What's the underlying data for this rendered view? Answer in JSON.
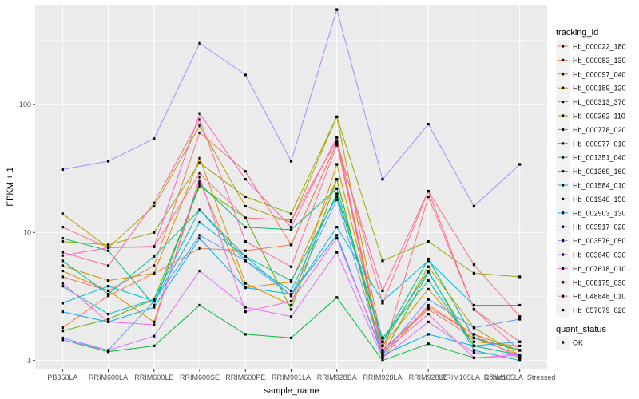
{
  "chart_data": {
    "type": "line",
    "xlabel": "sample_name",
    "ylabel": "FPKM + 1",
    "y_scale": "log10",
    "ylim": [
      0.85,
      600
    ],
    "y_ticks": [
      1,
      10,
      100
    ],
    "y_tick_labels": [
      "1",
      "10",
      "100"
    ],
    "grid": true,
    "categories": [
      "PB350LA",
      "RRIM600LA",
      "RRIM600LE",
      "RRIM600SE",
      "RRIM600PE",
      "RRIM901LA",
      "RRIM928BA",
      "RRIM928LA",
      "RRIM928LE",
      "RRIM105LA_Control",
      "RRIM105LA_Stressed"
    ],
    "series": [
      {
        "name": "Hb_000022_180",
        "color": "#F8766D",
        "values": [
          4.5,
          3.5,
          5.5,
          60,
          30,
          8,
          50,
          1.1,
          19,
          2.5,
          1.4
        ]
      },
      {
        "name": "Hb_000083_130",
        "color": "#F07E4E",
        "values": [
          1.8,
          3.2,
          4.8,
          7.5,
          7.2,
          8,
          50,
          1.2,
          2.5,
          1.5,
          1.1
        ]
      },
      {
        "name": "Hb_000097_040",
        "color": "#E58700",
        "values": [
          5.0,
          3.5,
          2.0,
          25,
          3.7,
          4.1,
          26,
          1.05,
          2.7,
          1.6,
          1.2
        ]
      },
      {
        "name": "Hb_000189_120",
        "color": "#D39200",
        "values": [
          5.5,
          4.2,
          4.8,
          38,
          4.0,
          2.7,
          34,
          1.3,
          3.6,
          1.4,
          1.3
        ]
      },
      {
        "name": "Hb_000313_370",
        "color": "#B79F00",
        "values": [
          14,
          7.6,
          16,
          68,
          16,
          12,
          80,
          1.3,
          5.4,
          1.8,
          1.1
        ]
      },
      {
        "name": "Hb_000362_110",
        "color": "#93AA00",
        "values": [
          8.5,
          8.0,
          10,
          35,
          19,
          14,
          80,
          6.0,
          8.5,
          4.8,
          4.5
        ]
      },
      {
        "name": "Hb_000778_020",
        "color": "#5EB300",
        "values": [
          1.7,
          2.1,
          3.0,
          23,
          13,
          2.5,
          26,
          1.1,
          4.9,
          1.3,
          1.1
        ]
      },
      {
        "name": "Hb_000977_010",
        "color": "#00BA38",
        "values": [
          1.45,
          1.17,
          1.3,
          2.7,
          1.6,
          1.5,
          3.1,
          1.0,
          1.35,
          1.05,
          1.05
        ]
      },
      {
        "name": "Hb_001351_040",
        "color": "#00BF74",
        "values": [
          9.0,
          7.2,
          2.7,
          24,
          11,
          10.5,
          22,
          1.4,
          6.2,
          1.5,
          1.2
        ]
      },
      {
        "name": "Hb_001369_160",
        "color": "#00C19F",
        "values": [
          6.0,
          3.3,
          6.5,
          15,
          6.5,
          4.2,
          19,
          1.5,
          4.2,
          1.3,
          1.1
        ]
      },
      {
        "name": "Hb_001584_010",
        "color": "#00BFC4",
        "values": [
          3.8,
          2.3,
          3.0,
          15,
          6.0,
          3.5,
          20,
          1.4,
          5.0,
          1.2,
          1.0
        ]
      },
      {
        "name": "Hb_001946_150",
        "color": "#00B9E3",
        "values": [
          2.8,
          3.8,
          2.9,
          12,
          6.5,
          3.2,
          11,
          2.9,
          6.0,
          2.7,
          2.7
        ]
      },
      {
        "name": "Hb_002903_130",
        "color": "#00ADFA",
        "values": [
          2.4,
          2.0,
          2.6,
          9.0,
          3.7,
          3.3,
          9.5,
          1.1,
          1.6,
          1.3,
          1.4
        ]
      },
      {
        "name": "Hb_003517_020",
        "color": "#619CFF",
        "values": [
          1.5,
          1.2,
          2.9,
          9.5,
          6.0,
          3.2,
          18,
          1.1,
          3.0,
          1.8,
          2.1
        ]
      },
      {
        "name": "Hb_003576_050",
        "color": "#AE87FF",
        "values": [
          31,
          36,
          54,
          300,
          170,
          36,
          550,
          26,
          70,
          16,
          34
        ]
      },
      {
        "name": "Hb_003640_030",
        "color": "#DB72FB",
        "values": [
          1.45,
          1.2,
          1.55,
          5.0,
          2.6,
          2.2,
          7.0,
          1.05,
          2.0,
          1.15,
          1.1
        ]
      },
      {
        "name": "Hb_007618_010",
        "color": "#F564E3",
        "values": [
          4.0,
          2.0,
          1.9,
          27,
          2.4,
          2.9,
          9.0,
          1.15,
          2.3,
          1.05,
          1.1
        ]
      },
      {
        "name": "Hb_008175_030",
        "color": "#FF61C3",
        "values": [
          6.6,
          7.6,
          7.8,
          85,
          26,
          11,
          55,
          1.2,
          2.6,
          1.6,
          1.05
        ]
      },
      {
        "name": "Hb_048848_010",
        "color": "#FF67A4",
        "values": [
          7.0,
          5.5,
          17,
          76,
          8.5,
          5.4,
          48,
          3.5,
          21,
          2.5,
          1.2
        ]
      },
      {
        "name": "Hb_057079_020",
        "color": "#FC717F",
        "values": [
          11,
          7.6,
          7.7,
          29,
          13,
          12.5,
          52,
          2.8,
          21,
          5.6,
          2.2
        ]
      }
    ],
    "legend": {
      "position": "right",
      "title": "tracking_id",
      "items": [
        "Hb_000022_180",
        "Hb_000083_130",
        "Hb_000097_040",
        "Hb_000189_120",
        "Hb_000313_370",
        "Hb_000362_110",
        "Hb_000778_020",
        "Hb_000977_010",
        "Hb_001351_040",
        "Hb_001369_160",
        "Hb_001584_010",
        "Hb_001946_150",
        "Hb_002903_130",
        "Hb_003517_020",
        "Hb_003576_050",
        "Hb_003640_030",
        "Hb_007618_010",
        "Hb_008175_030",
        "Hb_048848_010",
        "Hb_057079_020"
      ]
    },
    "shape_legend": {
      "title": "quant_status",
      "items": [
        "OK"
      ]
    },
    "panel_background": "#EBEBEB",
    "grid_color": "#FFFFFF",
    "point_color": "#000000"
  }
}
